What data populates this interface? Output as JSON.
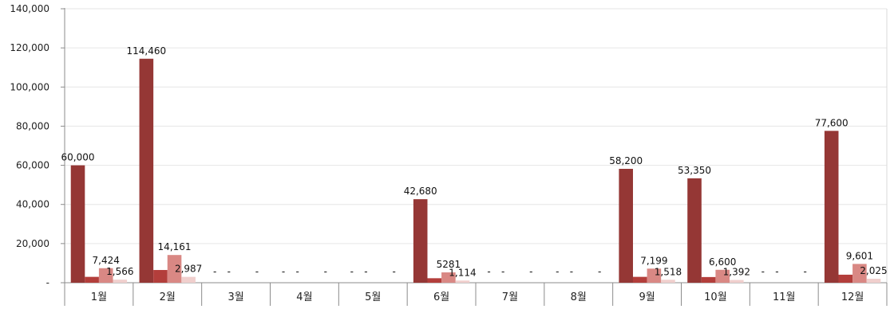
{
  "chart_data": {
    "type": "bar",
    "title": "",
    "xlabel": "",
    "ylabel": "",
    "ylim": [
      0,
      140000
    ],
    "y_ticks": [
      0,
      20000,
      40000,
      60000,
      80000,
      100000,
      120000,
      140000
    ],
    "y_tick_labels": [
      "-",
      "20,000",
      "40,000",
      "60,000",
      "80,000",
      "100,000",
      "120,000",
      "140,000"
    ],
    "grid": true,
    "legend": "none",
    "categories": [
      "1월",
      "2월",
      "3월",
      "4월",
      "5월",
      "6월",
      "7월",
      "8월",
      "9월",
      "10월",
      "11월",
      "12월"
    ],
    "series": [
      {
        "color": "#953735",
        "values": [
          60000,
          114460,
          0,
          0,
          0,
          42680,
          0,
          0,
          58200,
          53350,
          0,
          77600
        ],
        "labels": [
          "60,000",
          "114,460",
          "-",
          "-",
          "-",
          "42,680",
          "-",
          "-",
          "58,200",
          "53,350",
          "-",
          "77,600"
        ]
      },
      {
        "color": "#b33e3b",
        "values": [
          3000,
          6500,
          0,
          0,
          0,
          2300,
          0,
          0,
          3000,
          2900,
          0,
          4100
        ],
        "labels": [
          "",
          "",
          "-",
          "-",
          "-",
          "",
          "-",
          "-",
          "",
          "",
          "-",
          ""
        ]
      },
      {
        "color": "#d98884",
        "values": [
          7424,
          14161,
          0,
          0,
          0,
          5281,
          0,
          0,
          7199,
          6600,
          0,
          9601
        ],
        "labels": [
          "7,424",
          "14,161",
          "",
          "",
          "",
          "5281",
          "",
          "",
          "7,199",
          "6,600",
          "",
          "9,601"
        ]
      },
      {
        "color": "#f0cfcd",
        "values": [
          1566,
          2987,
          0,
          0,
          0,
          1114,
          0,
          0,
          1518,
          1392,
          0,
          2025
        ],
        "labels": [
          "1,566",
          "2,987",
          "-",
          "-",
          "-",
          "1,114",
          "-",
          "-",
          "1,518",
          "1,392",
          "-",
          "2,025"
        ]
      }
    ]
  }
}
